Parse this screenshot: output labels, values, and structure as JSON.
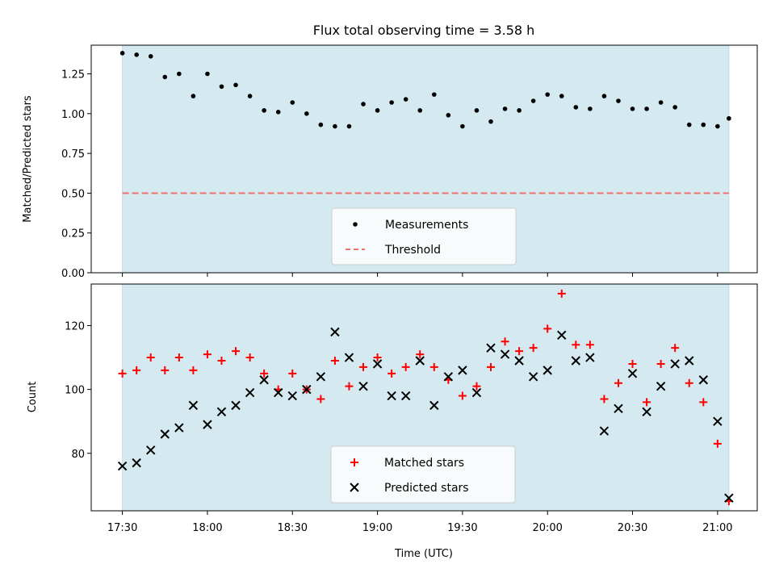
{
  "figure": {
    "title": "Flux total observing time = 3.58 h"
  },
  "chart_data": [
    {
      "type": "scatter",
      "panel": "top",
      "title": "Flux total observing time = 3.58 h",
      "xlabel": "",
      "ylabel": "Matched/Predicted stars",
      "xlim": [
        "17:19",
        "21:14"
      ],
      "ylim": [
        0,
        1.43
      ],
      "yticks": [
        0.0,
        0.25,
        0.5,
        0.75,
        1.0,
        1.25
      ],
      "ytick_labels": [
        "0.00",
        "0.25",
        "0.50",
        "0.75",
        "1.00",
        "1.25"
      ],
      "shaded_span": [
        "17:30",
        "21:04"
      ],
      "shade_color": "#d4eaf0",
      "legend_position": "lower center",
      "series": [
        {
          "name": "Measurements",
          "kind": "scatter",
          "marker": "dot",
          "color": "#000000",
          "x": [
            "17:30",
            "17:35",
            "17:40",
            "17:45",
            "17:50",
            "17:55",
            "18:00",
            "18:05",
            "18:10",
            "18:15",
            "18:20",
            "18:25",
            "18:30",
            "18:35",
            "18:40",
            "18:45",
            "18:50",
            "18:55",
            "19:00",
            "19:05",
            "19:10",
            "19:15",
            "19:20",
            "19:25",
            "19:30",
            "19:35",
            "19:40",
            "19:45",
            "19:50",
            "19:55",
            "20:00",
            "20:05",
            "20:10",
            "20:15",
            "20:20",
            "20:25",
            "20:30",
            "20:35",
            "20:40",
            "20:45",
            "20:50",
            "20:55",
            "21:00",
            "21:04"
          ],
          "y": [
            1.38,
            1.37,
            1.36,
            1.23,
            1.25,
            1.11,
            1.25,
            1.17,
            1.18,
            1.11,
            1.02,
            1.01,
            1.07,
            1.0,
            0.93,
            0.92,
            0.92,
            1.06,
            1.02,
            1.07,
            1.09,
            1.02,
            1.12,
            0.99,
            0.92,
            1.02,
            0.95,
            1.03,
            1.02,
            1.08,
            1.12,
            1.11,
            1.04,
            1.03,
            1.11,
            1.08,
            1.03,
            1.03,
            1.07,
            1.04,
            0.93,
            0.93,
            0.92,
            0.97
          ]
        },
        {
          "name": "Threshold",
          "kind": "hline",
          "style": "dashed",
          "color": "#f07070",
          "y": 0.5,
          "x_range": [
            "17:30",
            "21:04"
          ]
        }
      ]
    },
    {
      "type": "scatter",
      "panel": "bottom",
      "xlabel": "Time (UTC)",
      "ylabel": "Count",
      "xlim": [
        "17:19",
        "21:14"
      ],
      "ylim": [
        62,
        133
      ],
      "yticks": [
        80,
        100,
        120
      ],
      "ytick_labels": [
        "80",
        "100",
        "120"
      ],
      "xticks": [
        "17:30",
        "18:00",
        "18:30",
        "19:00",
        "19:30",
        "20:00",
        "20:30",
        "21:00"
      ],
      "shaded_span": [
        "17:30",
        "21:04"
      ],
      "shade_color": "#d4eaf0",
      "legend_position": "lower center",
      "series": [
        {
          "name": "Matched stars",
          "kind": "scatter",
          "marker": "plus",
          "color": "#ff0000",
          "x": [
            "17:30",
            "17:35",
            "17:40",
            "17:45",
            "17:50",
            "17:55",
            "18:00",
            "18:05",
            "18:10",
            "18:15",
            "18:20",
            "18:25",
            "18:30",
            "18:35",
            "18:40",
            "18:45",
            "18:50",
            "18:55",
            "19:00",
            "19:05",
            "19:10",
            "19:15",
            "19:20",
            "19:25",
            "19:30",
            "19:35",
            "19:40",
            "19:45",
            "19:50",
            "19:55",
            "20:00",
            "20:05",
            "20:10",
            "20:15",
            "20:20",
            "20:25",
            "20:30",
            "20:35",
            "20:40",
            "20:45",
            "20:50",
            "20:55",
            "21:00",
            "21:04"
          ],
          "y": [
            105,
            106,
            110,
            106,
            110,
            106,
            111,
            109,
            112,
            110,
            105,
            100,
            105,
            100,
            97,
            109,
            101,
            107,
            110,
            105,
            107,
            111,
            107,
            103,
            98,
            101,
            107,
            115,
            112,
            113,
            119,
            130,
            114,
            114,
            97,
            102,
            108,
            96,
            108,
            113,
            102,
            96,
            83,
            65
          ]
        },
        {
          "name": "Predicted stars",
          "kind": "scatter",
          "marker": "x",
          "color": "#000000",
          "x": [
            "17:30",
            "17:35",
            "17:40",
            "17:45",
            "17:50",
            "17:55",
            "18:00",
            "18:05",
            "18:10",
            "18:15",
            "18:20",
            "18:25",
            "18:30",
            "18:35",
            "18:40",
            "18:45",
            "18:50",
            "18:55",
            "19:00",
            "19:05",
            "19:10",
            "19:15",
            "19:20",
            "19:25",
            "19:30",
            "19:35",
            "19:40",
            "19:45",
            "19:50",
            "19:55",
            "20:00",
            "20:05",
            "20:10",
            "20:15",
            "20:20",
            "20:25",
            "20:30",
            "20:35",
            "20:40",
            "20:45",
            "20:50",
            "20:55",
            "21:00",
            "21:04"
          ],
          "y": [
            76,
            77,
            81,
            86,
            88,
            95,
            89,
            93,
            95,
            99,
            103,
            99,
            98,
            100,
            104,
            118,
            110,
            101,
            108,
            98,
            98,
            109,
            95,
            104,
            106,
            99,
            113,
            111,
            109,
            104,
            106,
            117,
            109,
            110,
            87,
            94,
            105,
            93,
            101,
            108,
            109,
            103,
            90,
            66
          ]
        }
      ]
    }
  ]
}
